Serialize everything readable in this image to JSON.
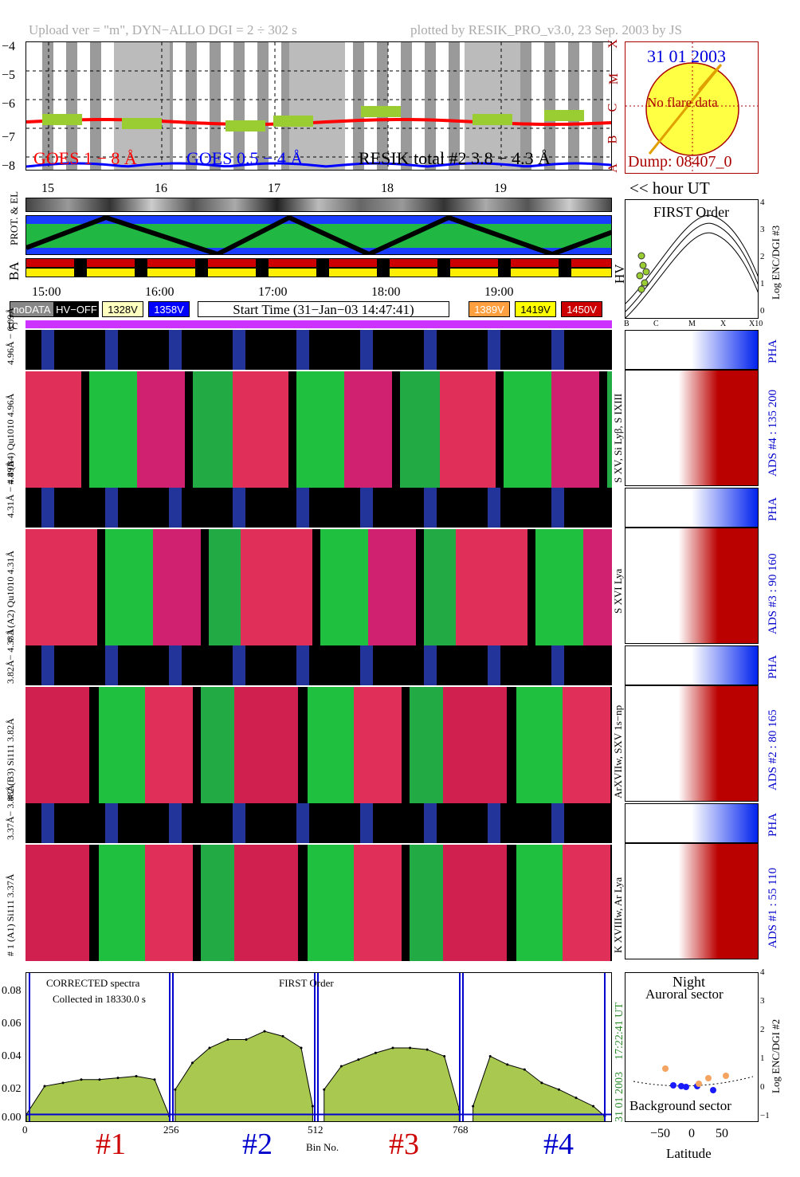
{
  "header": {
    "left": "Upload ver = \"m\", DYN−ALLO DGI =   2 ÷ 302 s",
    "right": "plotted by RESIK_PRO_v3.0, 23 Sep. 2003 by JS"
  },
  "goes": {
    "y_ticks": [
      "−4",
      "−5",
      "−6",
      "−7",
      "−8"
    ],
    "class_labels": [
      "X",
      "M",
      "C",
      "B",
      "A"
    ],
    "legend": {
      "goes_long": "GOES 1 − 8 Å",
      "goes_short": "GOES 0.5 − 4 Å",
      "resik": "RESIK total #2  3.8 − 4.3 Å"
    },
    "colors": {
      "goes_long": "#ff0000",
      "goes_short": "#0000ff",
      "resik": "#9acd32",
      "resik_flare": "#f4a460"
    }
  },
  "sun_panel": {
    "date": "31 01 2003",
    "flare_text": "No flare data",
    "dump": "Dump: 08407_0"
  },
  "hour_axis": {
    "ticks": [
      "15",
      "16",
      "17",
      "18",
      "19"
    ],
    "label": "<< hour UT"
  },
  "side_labels": {
    "prot_el": "PROT. & EL",
    "ba": "BA",
    "hv": "HV",
    "tc": "tc"
  },
  "time_axis": {
    "ticks": [
      "15:00",
      "16:00",
      "17:00",
      "18:00",
      "19:00"
    ]
  },
  "hv_legend": {
    "nodata": "noDATA",
    "hvoff": "HV−OFF",
    "v1328": "1328V",
    "v1358": "1358V",
    "start_time": "Start Time (31−Jan−03 14:47:41)",
    "v1389": "1389V",
    "v1419": "1419V",
    "v1450": "1450V",
    "colors": {
      "v1328": "#ffffc0",
      "v1358": "#0000ff",
      "v1389": "#ffa040",
      "v1419": "#ffff00",
      "v1450": "#cc0000"
    }
  },
  "first_order": {
    "title": "FIRST Order",
    "y_label": "Log ENC/DGI #3",
    "y_ticks": [
      "4",
      "3",
      "2",
      "1",
      "0"
    ],
    "x_ticks": [
      "B",
      "C",
      "M",
      "X",
      "X10"
    ]
  },
  "channels": [
    {
      "pha_label": "4.96Å − 6.09Å",
      "spec_label": "# 4 (B4) Qu1010 4.96Å",
      "side_label": "S XV, Si Lyβ, S IXIII",
      "ads_label": "ADS #4 :  135 200"
    },
    {
      "pha_label": "4.31Å − 4.89Å",
      "spec_label": "# 3 (A2) Qu1010  4.31Å",
      "side_label": "S XVI Lya",
      "ads_label": "ADS #3 :   90 160"
    },
    {
      "pha_label": "3.82Å− 4.33Å",
      "spec_label": "# 2 (B3) Si111  3.82Å",
      "side_label": "ArXVIIw, SXV 1s−np",
      "ads_label": "ADS #2 :   80 165"
    },
    {
      "pha_label": "3.37Å− 3.88Å",
      "spec_label": "# 1 (A1) Si111  3.37Å",
      "side_label": "K XVIIIw, Ar Lya",
      "ads_label": "ADS #1 :   55 110"
    }
  ],
  "pha_text": "PHA",
  "spectrum": {
    "y_ticks": [
      "0.08",
      "0.06",
      "0.04",
      "0.02",
      "0.00"
    ],
    "x_ticks": [
      "0",
      "256",
      "512",
      "768"
    ],
    "xlabel": "Bin No.",
    "text_corrected": "CORRECTED spectra",
    "text_collected": "Collected in 18330.0 s",
    "text_first_order": "FIRST Order",
    "side_ut": "17:22:41 UT",
    "side_date": "31 01 2003",
    "detector_labels": [
      "#1",
      "#2",
      "#3",
      "#4"
    ],
    "detector_colors": [
      "#cc0000",
      "#0000cc",
      "#cc0000",
      "#0000cc"
    ]
  },
  "latitude_panel": {
    "night": "Night",
    "auroral": "Auroral sector",
    "background": "Background sector",
    "x_ticks": [
      "−50",
      "0",
      "50"
    ],
    "xlabel": "Latitude",
    "y_ticks": [
      "4",
      "3",
      "2",
      "1",
      "0",
      "−1"
    ],
    "y_label": "Log ENC/DGI #2"
  },
  "chart_data": {
    "type": "line",
    "title": "",
    "xlabel": "Bin No.",
    "ylabel": "",
    "xlim": [
      0,
      1024
    ],
    "ylim": [
      0,
      0.09
    ],
    "series": [
      {
        "name": "#1",
        "x": [
          0,
          32,
          64,
          96,
          128,
          160,
          192,
          224,
          250
        ],
        "values": [
          0.005,
          0.022,
          0.024,
          0.026,
          0.026,
          0.027,
          0.028,
          0.026,
          0.004
        ]
      },
      {
        "name": "#2",
        "x": [
          260,
          290,
          320,
          352,
          384,
          416,
          448,
          480,
          500
        ],
        "values": [
          0.02,
          0.036,
          0.045,
          0.05,
          0.05,
          0.055,
          0.052,
          0.045,
          0.01
        ]
      },
      {
        "name": "#3",
        "x": [
          520,
          550,
          580,
          610,
          640,
          670,
          700,
          730,
          756
        ],
        "values": [
          0.02,
          0.034,
          0.038,
          0.042,
          0.045,
          0.045,
          0.044,
          0.04,
          0.008
        ]
      },
      {
        "name": "#4",
        "x": [
          780,
          810,
          840,
          870,
          900,
          930,
          960,
          990,
          1010
        ],
        "values": [
          0.01,
          0.04,
          0.035,
          0.032,
          0.024,
          0.02,
          0.015,
          0.01,
          0.004
        ]
      }
    ]
  }
}
